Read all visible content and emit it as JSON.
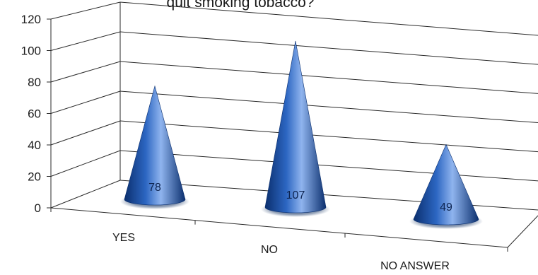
{
  "chart_data": {
    "type": "bar",
    "bar_shape": "cone",
    "title": "quit smoking tobacco?",
    "categories": [
      "YES",
      "NO",
      "NO ANSWER"
    ],
    "values": [
      78,
      107,
      49
    ],
    "data_labels": [
      "78",
      "107",
      "49"
    ],
    "y_ticks": [
      "0",
      "20",
      "40",
      "60",
      "80",
      "100",
      "120"
    ],
    "ylim": [
      0,
      120
    ],
    "grid": true,
    "legend": "none",
    "colors": {
      "cone_dark": "#0b2f6e",
      "cone_mid": "#2c66c2",
      "cone_light": "#8fb4ee",
      "shadow": "#0a2a5c",
      "gridline": "#2a2a2a"
    }
  }
}
